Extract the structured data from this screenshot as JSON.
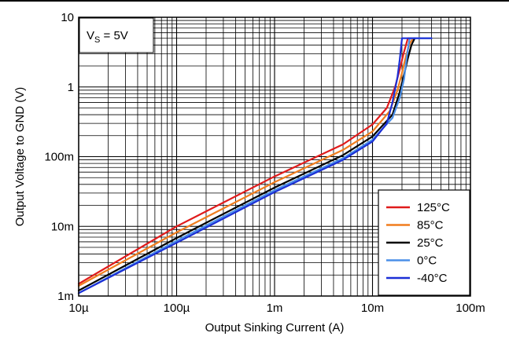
{
  "chart_data": {
    "type": "line",
    "title": "",
    "xlabel": "Output Sinking Current (A)",
    "ylabel": "Output Voltage to GND (V)",
    "x_scale": "log",
    "y_scale": "log",
    "xlim": [
      1e-05,
      0.1
    ],
    "ylim": [
      0.001,
      10
    ],
    "x_ticks": [
      {
        "value": 1e-05,
        "label": "10µ"
      },
      {
        "value": 0.0001,
        "label": "100µ"
      },
      {
        "value": 0.001,
        "label": "1m"
      },
      {
        "value": 0.01,
        "label": "10m"
      },
      {
        "value": 0.1,
        "label": "100m"
      }
    ],
    "y_ticks": [
      {
        "value": 10,
        "label": "10"
      },
      {
        "value": 1,
        "label": "1"
      },
      {
        "value": 0.1,
        "label": "100m"
      },
      {
        "value": 0.01,
        "label": "10m"
      },
      {
        "value": 0.001,
        "label": "1m"
      }
    ],
    "grid": true,
    "legend_position": "bottom-right",
    "annotation": {
      "text_main": "V",
      "text_sub": "S",
      "text_rest": " = 5V"
    },
    "series": [
      {
        "name": "125°C",
        "color": "#e01b1b",
        "x": [
          1e-05,
          0.0001,
          0.001,
          0.005,
          0.01,
          0.014,
          0.017,
          0.019,
          0.021,
          0.023,
          0.025
        ],
        "y": [
          0.0015,
          0.01,
          0.052,
          0.15,
          0.29,
          0.5,
          1.0,
          1.8,
          3.2,
          5.0,
          5.0
        ]
      },
      {
        "name": "85°C",
        "color": "#f07d1e",
        "x": [
          1e-05,
          0.0001,
          0.001,
          0.005,
          0.01,
          0.015,
          0.018,
          0.02,
          0.022,
          0.024,
          0.026
        ],
        "y": [
          0.0014,
          0.0082,
          0.043,
          0.125,
          0.23,
          0.45,
          0.9,
          1.6,
          2.8,
          4.2,
          5.0
        ]
      },
      {
        "name": "25°C",
        "color": "#000000",
        "x": [
          1e-05,
          0.0001,
          0.001,
          0.005,
          0.01,
          0.016,
          0.019,
          0.021,
          0.023,
          0.025,
          0.027
        ],
        "y": [
          0.0012,
          0.0068,
          0.036,
          0.105,
          0.195,
          0.4,
          0.85,
          1.5,
          2.6,
          4.0,
          5.0
        ]
      },
      {
        "name": "0°C",
        "color": "#4a8fe8",
        "x": [
          1e-05,
          0.0001,
          0.001,
          0.005,
          0.01,
          0.016,
          0.019,
          0.021,
          0.022,
          0.023,
          0.024,
          0.04
        ],
        "y": [
          0.0011,
          0.0062,
          0.033,
          0.095,
          0.175,
          0.36,
          0.7,
          1.3,
          2.2,
          3.5,
          5.0,
          5.0
        ]
      },
      {
        "name": "-40°C",
        "color": "#1b2fd6",
        "x": [
          1e-05,
          0.0001,
          0.001,
          0.005,
          0.01,
          0.014,
          0.016,
          0.018,
          0.019,
          0.02,
          0.04
        ],
        "y": [
          0.0011,
          0.0058,
          0.031,
          0.09,
          0.165,
          0.3,
          0.6,
          1.4,
          2.5,
          5.0,
          5.0
        ]
      }
    ]
  }
}
